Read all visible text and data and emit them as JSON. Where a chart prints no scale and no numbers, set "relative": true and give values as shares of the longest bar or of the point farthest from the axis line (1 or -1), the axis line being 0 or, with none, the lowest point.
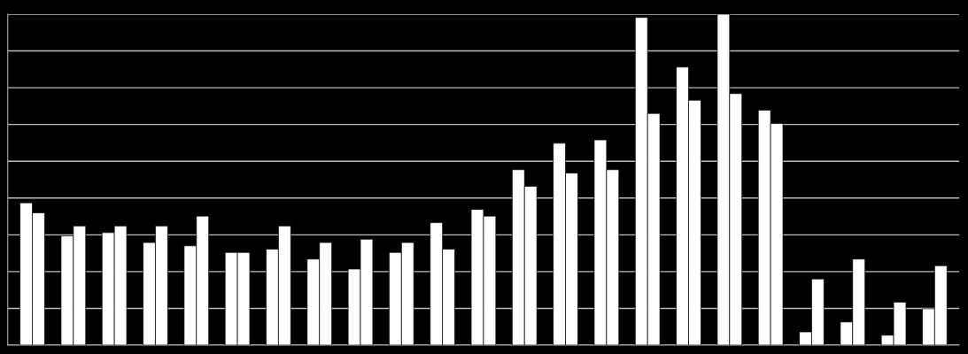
{
  "chart_data": {
    "type": "bar",
    "relative": true,
    "grid": "y",
    "categories": [
      null,
      null,
      null,
      null,
      null,
      null,
      null,
      null,
      null,
      null,
      null,
      null,
      null,
      null,
      null,
      null,
      null,
      null,
      null,
      null,
      null,
      null,
      null
    ],
    "series": [
      {
        "color": "#ffffff",
        "values": [
          0.43,
          0.33,
          0.34,
          0.31,
          0.3,
          0.28,
          0.29,
          0.26,
          0.23,
          0.28,
          0.37,
          0.41,
          0.53,
          0.61,
          0.62,
          0.99,
          0.84,
          1.0,
          0.71,
          0.04,
          0.07,
          0.03,
          0.11
        ]
      },
      {
        "color": "#ffffff",
        "values": [
          0.4,
          0.36,
          0.36,
          0.36,
          0.39,
          0.28,
          0.36,
          0.31,
          0.32,
          0.31,
          0.29,
          0.39,
          0.48,
          0.52,
          0.53,
          0.7,
          0.74,
          0.76,
          0.67,
          0.2,
          0.26,
          0.13,
          0.24
        ]
      }
    ]
  }
}
